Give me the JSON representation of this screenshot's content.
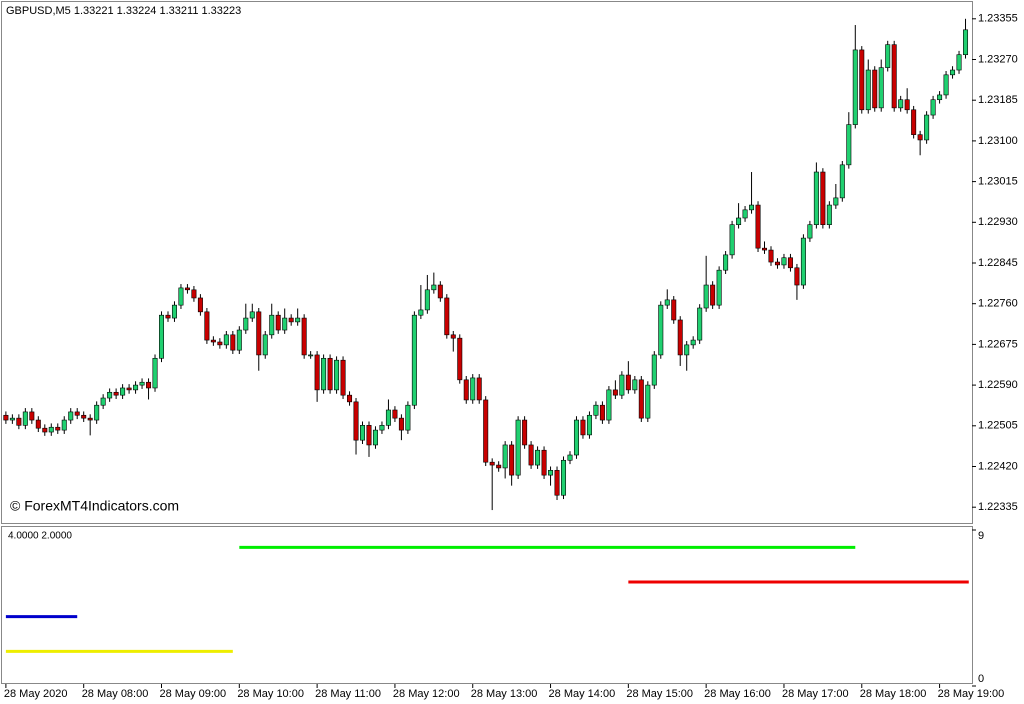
{
  "chart_data": [
    {
      "type": "candlestick",
      "title": "GBPUSD,M5  1.33221 1.33224 1.33211 1.33223",
      "annotation": "© ForexMT4Indicators.com",
      "up_color": "#20d070",
      "down_color": "#c80000",
      "open": [
        1.22527,
        1.22517,
        1.22521,
        1.22506,
        1.22534,
        1.22517,
        1.225,
        1.22492,
        1.22502,
        1.22496,
        1.22517,
        1.22534,
        1.22527,
        1.22521,
        1.22517,
        1.22548,
        1.22563,
        1.22575,
        1.22569,
        1.22584,
        1.2258,
        1.2259,
        1.22596,
        1.22584,
        1.22646,
        1.22736,
        1.2273,
        1.22757,
        1.22793,
        1.22789,
        1.22772,
        1.22743,
        1.22684,
        1.2268,
        1.22674,
        1.22695,
        1.22663,
        1.22705,
        1.2273,
        1.22743,
        1.22653,
        1.22695,
        1.22736,
        1.22705,
        1.2273,
        1.22722,
        1.2273,
        1.22653,
        1.22653,
        1.2258,
        1.22646,
        1.2258,
        1.22642,
        1.22569,
        1.22555,
        1.22475,
        1.22506,
        1.22465,
        1.22496,
        1.22506,
        1.22538,
        1.22521,
        1.22496,
        1.22548,
        1.22736,
        1.22747,
        1.22789,
        1.22799,
        1.22772,
        1.22695,
        1.22688,
        1.22601,
        1.22559,
        1.22605,
        1.22559,
        1.22429,
        1.22423,
        1.22417,
        1.22465,
        1.22402,
        1.22517,
        1.22465,
        1.22423,
        1.22454,
        1.22402,
        1.22412,
        1.2236,
        1.22433,
        1.22444,
        1.22517,
        1.22486,
        1.22527,
        1.22548,
        1.22517,
        1.2258,
        1.22569,
        1.22611,
        1.2258,
        1.22601,
        1.22521,
        1.2259,
        1.22653,
        1.22757,
        1.22768,
        1.22726,
        1.22653,
        1.22674,
        1.22684,
        1.22751,
        1.22799,
        1.22757,
        1.2283,
        1.22862,
        1.22925,
        1.22939,
        1.22956,
        1.22966,
        1.22876,
        1.22872,
        1.22847,
        1.22841,
        1.22856,
        1.22835,
        1.22799,
        1.22897,
        1.22925,
        1.23035,
        1.22925,
        1.22966,
        1.22981,
        1.2305,
        1.23134,
        1.2329,
        1.23165,
        1.23248,
        1.23169,
        1.23253,
        1.23301,
        1.23169,
        1.23186,
        1.23165,
        1.23113,
        1.23102,
        1.23154,
        1.23186,
        1.23196,
        1.23238,
        1.23248,
        1.2328
      ],
      "high": [
        1.22535,
        1.22529,
        1.22529,
        1.22542,
        1.22542,
        1.22525,
        1.22508,
        1.2251,
        1.2251,
        1.22525,
        1.22542,
        1.22542,
        1.22535,
        1.22529,
        1.22556,
        1.22571,
        1.22583,
        1.22583,
        1.22592,
        1.22592,
        1.22598,
        1.22604,
        1.22604,
        1.22654,
        1.22744,
        1.22744,
        1.22765,
        1.22801,
        1.22801,
        1.22797,
        1.2278,
        1.22751,
        1.22692,
        1.22688,
        1.22703,
        1.22703,
        1.22713,
        1.2276,
        1.2276,
        1.22751,
        1.22703,
        1.2276,
        1.22744,
        1.2275,
        1.22738,
        1.2275,
        1.22738,
        1.22661,
        1.22661,
        1.22654,
        1.22654,
        1.2265,
        1.2265,
        1.22577,
        1.22563,
        1.22514,
        1.22514,
        1.22504,
        1.22514,
        1.2256,
        1.22546,
        1.22529,
        1.22556,
        1.22744,
        1.22799,
        1.2282,
        1.22825,
        1.22807,
        1.2278,
        1.22703,
        1.22696,
        1.22609,
        1.22613,
        1.22613,
        1.22567,
        1.22437,
        1.22431,
        1.22473,
        1.22473,
        1.22525,
        1.22525,
        1.22473,
        1.22462,
        1.22462,
        1.2242,
        1.2242,
        1.22441,
        1.22452,
        1.22525,
        1.22525,
        1.22535,
        1.22556,
        1.22556,
        1.22588,
        1.226,
        1.22619,
        1.2264,
        1.22609,
        1.22609,
        1.22598,
        1.22661,
        1.22765,
        1.2279,
        1.22776,
        1.22734,
        1.22682,
        1.22692,
        1.22759,
        1.2286,
        1.22807,
        1.22838,
        1.2287,
        1.22933,
        1.2297,
        1.22964,
        1.23035,
        1.22974,
        1.2289,
        1.2288,
        1.22855,
        1.22864,
        1.22864,
        1.22843,
        1.22905,
        1.22933,
        1.23055,
        1.23043,
        1.22974,
        1.2301,
        1.23058,
        1.2316,
        1.23342,
        1.23298,
        1.2327,
        1.23256,
        1.2327,
        1.23309,
        1.23309,
        1.23194,
        1.2321,
        1.23173,
        1.23121,
        1.23162,
        1.23194,
        1.23204,
        1.23246,
        1.23256,
        1.23288,
        1.23355
      ],
      "low": [
        1.22509,
        1.22509,
        1.22498,
        1.22498,
        1.22509,
        1.22492,
        1.22484,
        1.22484,
        1.22488,
        1.22488,
        1.22509,
        1.22519,
        1.22513,
        1.22485,
        1.22509,
        1.2254,
        1.22555,
        1.22561,
        1.22561,
        1.22572,
        1.22572,
        1.22582,
        1.2256,
        1.22576,
        1.22638,
        1.22722,
        1.22722,
        1.22749,
        1.22781,
        1.22764,
        1.22735,
        1.22676,
        1.22672,
        1.22666,
        1.22666,
        1.22655,
        1.22655,
        1.22697,
        1.22722,
        1.2262,
        1.22645,
        1.22687,
        1.22697,
        1.22697,
        1.22714,
        1.22714,
        1.22645,
        1.22645,
        1.22555,
        1.22572,
        1.22572,
        1.22572,
        1.22561,
        1.22547,
        1.22445,
        1.22467,
        1.2244,
        1.22457,
        1.22488,
        1.22498,
        1.22513,
        1.22475,
        1.22488,
        1.2254,
        1.22728,
        1.22739,
        1.22781,
        1.22764,
        1.22687,
        1.2266,
        1.22593,
        1.22551,
        1.22551,
        1.22551,
        1.22421,
        1.22329,
        1.22409,
        1.22395,
        1.2238,
        1.22394,
        1.22457,
        1.22415,
        1.22415,
        1.22394,
        1.2238,
        1.2235,
        1.22352,
        1.22425,
        1.22436,
        1.22478,
        1.22478,
        1.22519,
        1.22509,
        1.22509,
        1.22561,
        1.22561,
        1.22572,
        1.22572,
        1.22513,
        1.22513,
        1.22582,
        1.22645,
        1.22749,
        1.22718,
        1.2263,
        1.2262,
        1.22666,
        1.22676,
        1.22743,
        1.22749,
        1.22749,
        1.22822,
        1.22854,
        1.22917,
        1.22931,
        1.22948,
        1.22868,
        1.22864,
        1.22839,
        1.22833,
        1.22833,
        1.22827,
        1.22768,
        1.22791,
        1.22889,
        1.22917,
        1.22917,
        1.22917,
        1.22958,
        1.22973,
        1.23042,
        1.23126,
        1.23157,
        1.23157,
        1.23161,
        1.23161,
        1.23245,
        1.23161,
        1.23161,
        1.23157,
        1.23105,
        1.2307,
        1.23094,
        1.23146,
        1.23178,
        1.23188,
        1.2323,
        1.2324,
        1.23272
      ],
      "close": [
        1.22517,
        1.22521,
        1.22506,
        1.22534,
        1.22517,
        1.225,
        1.22492,
        1.22502,
        1.22496,
        1.22517,
        1.22534,
        1.22527,
        1.22521,
        1.22517,
        1.22548,
        1.22563,
        1.22575,
        1.22569,
        1.22584,
        1.2258,
        1.2259,
        1.22596,
        1.22584,
        1.22646,
        1.22736,
        1.2273,
        1.22757,
        1.22793,
        1.22789,
        1.22772,
        1.22743,
        1.22684,
        1.2268,
        1.22674,
        1.22695,
        1.22663,
        1.22705,
        1.2273,
        1.22743,
        1.22653,
        1.22695,
        1.22736,
        1.22705,
        1.2273,
        1.22722,
        1.2273,
        1.22653,
        1.22653,
        1.2258,
        1.22646,
        1.2258,
        1.22642,
        1.22569,
        1.22555,
        1.22475,
        1.22506,
        1.22465,
        1.22496,
        1.22506,
        1.22538,
        1.22521,
        1.22496,
        1.22548,
        1.22736,
        1.22747,
        1.22789,
        1.22799,
        1.22772,
        1.22695,
        1.22688,
        1.22601,
        1.22559,
        1.22605,
        1.22559,
        1.22429,
        1.22423,
        1.22417,
        1.22465,
        1.22402,
        1.22517,
        1.22465,
        1.22423,
        1.22454,
        1.22402,
        1.22412,
        1.2236,
        1.22433,
        1.22444,
        1.22517,
        1.22486,
        1.22527,
        1.22548,
        1.22517,
        1.2258,
        1.22569,
        1.22611,
        1.2258,
        1.22601,
        1.22521,
        1.2259,
        1.22653,
        1.22757,
        1.22768,
        1.22726,
        1.22653,
        1.22674,
        1.22684,
        1.22751,
        1.22799,
        1.22757,
        1.2283,
        1.22862,
        1.22925,
        1.22939,
        1.22956,
        1.22966,
        1.22876,
        1.22872,
        1.22847,
        1.22841,
        1.22856,
        1.22835,
        1.22799,
        1.22897,
        1.22925,
        1.23035,
        1.22925,
        1.22966,
        1.22981,
        1.2305,
        1.23134,
        1.2329,
        1.23165,
        1.23248,
        1.23169,
        1.23253,
        1.23301,
        1.23169,
        1.23186,
        1.23165,
        1.23113,
        1.23102,
        1.23154,
        1.23186,
        1.23196,
        1.23238,
        1.23248,
        1.2328,
        1.23332
      ],
      "xlim": [
        -0.6,
        149
      ],
      "ylim": [
        1.22302,
        1.23388
      ],
      "yticks": [
        1.23355,
        {
          "value": 1.2327,
          "label": "1.23270"
        },
        1.23185,
        {
          "value": 1.231,
          "label": "1.23100"
        },
        1.23015,
        {
          "value": 1.2293,
          "label": "1.22930"
        },
        1.22845,
        {
          "value": 1.2276,
          "label": "1.22760"
        },
        1.22675,
        {
          "value": 1.2259,
          "label": "1.22590"
        },
        1.22505,
        {
          "value": 1.2242,
          "label": "1.22420"
        },
        1.22335
      ]
    },
    {
      "type": "line",
      "title": "4.0000 2.0000",
      "xlim": [
        -0.6,
        149
      ],
      "ylim": [
        0,
        9
      ],
      "yticks": [
        0,
        9
      ],
      "xticks": [
        {
          "value": 0,
          "label": "28 May 2020"
        },
        {
          "value": 12,
          "label": "28 May 08:00"
        },
        {
          "value": 24,
          "label": "28 May 09:00"
        },
        {
          "value": 36,
          "label": "28 May 10:00"
        },
        {
          "value": 48,
          "label": "28 May 11:00"
        },
        {
          "value": 60,
          "label": "28 May 12:00"
        },
        {
          "value": 72,
          "label": "28 May 13:00"
        },
        {
          "value": 84,
          "label": "28 May 14:00"
        },
        {
          "value": 96,
          "label": "28 May 15:00"
        },
        {
          "value": 108,
          "label": "28 May 16:00"
        },
        {
          "value": 120,
          "label": "28 May 17:00"
        },
        {
          "value": 132,
          "label": "28 May 18:00"
        },
        {
          "value": 144,
          "label": "28 May 19:00"
        }
      ],
      "series": [
        {
          "color": "#00ee00",
          "x": [
            36,
            131
          ],
          "values": [
            8,
            8
          ]
        },
        {
          "color": "#ee0000",
          "x": [
            96,
            148.5
          ],
          "values": [
            6,
            6
          ]
        },
        {
          "color": "#0000cc",
          "x": [
            0,
            11
          ],
          "values": [
            4,
            4
          ]
        },
        {
          "color": "#eeee00",
          "x": [
            0,
            35
          ],
          "values": [
            2,
            2
          ]
        }
      ]
    }
  ]
}
